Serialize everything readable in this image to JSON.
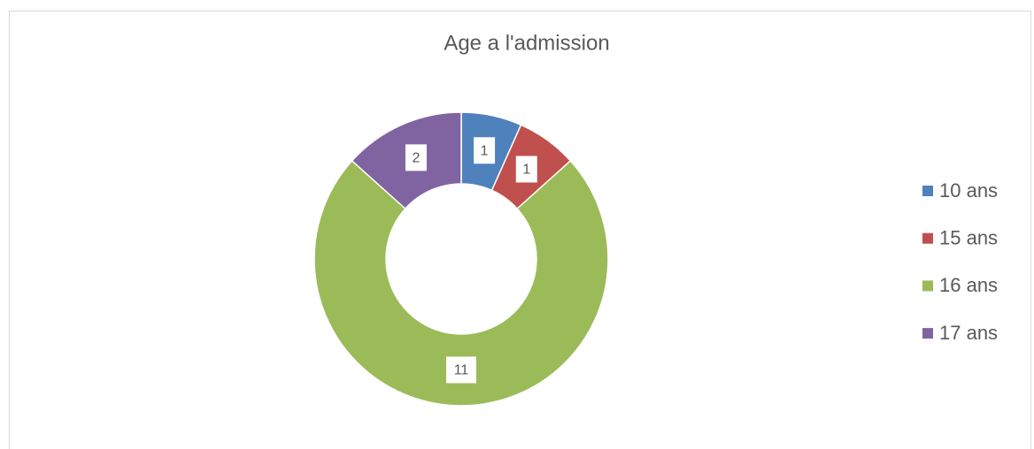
{
  "chart_data": {
    "type": "doughnut",
    "title": "Age a l'admission",
    "categories": [
      "10 ans",
      "15 ans",
      "16 ans",
      "17 ans"
    ],
    "values": [
      1,
      1,
      11,
      2
    ],
    "colors": [
      "#4f81bd",
      "#c0504d",
      "#9bbb59",
      "#8064a2"
    ],
    "legend": "right"
  }
}
